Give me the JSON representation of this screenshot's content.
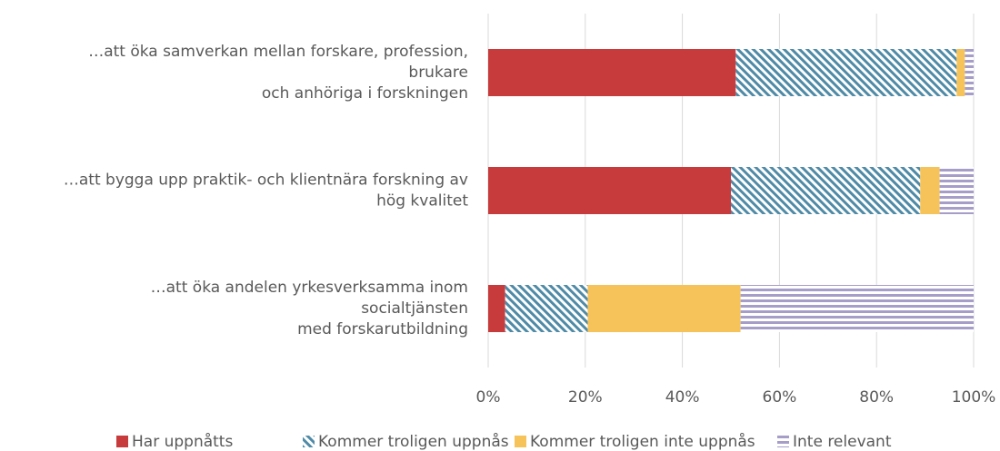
{
  "chart_data": {
    "type": "stacked-barh",
    "categories": [
      [
        "…att öka samverkan mellan forskare, profession,",
        "brukare",
        "och anhöriga i forskningen"
      ],
      [
        "…att bygga upp praktik- och klientnära forskning av",
        "hög kvalitet"
      ],
      [
        "…att öka andelen yrkesverksamma inom",
        "socialtjänsten",
        "med forskarutbildning"
      ]
    ],
    "series": [
      {
        "name": "Har uppnåtts",
        "color": "#c83b3d",
        "hatch": "none",
        "values": [
          51,
          50,
          3.5
        ]
      },
      {
        "name": "Kommer troligen uppnås",
        "color": "#4f8aa6",
        "hatch": "diagonal",
        "values": [
          45.5,
          39,
          17
        ]
      },
      {
        "name": "Kommer troligen inte uppnås",
        "color": "#f6c35a",
        "hatch": "none",
        "values": [
          1.7,
          4,
          31.5
        ]
      },
      {
        "name": "Inte relevant",
        "color": "#a69dc8",
        "hatch": "horizontal",
        "values": [
          1.8,
          7,
          48
        ]
      }
    ],
    "xlim": [
      0,
      100
    ],
    "xticks": [
      {
        "value": 0,
        "label": "0%"
      },
      {
        "value": 20,
        "label": "20%"
      },
      {
        "value": 40,
        "label": "40%"
      },
      {
        "value": 60,
        "label": "60%"
      },
      {
        "value": 80,
        "label": "80%"
      },
      {
        "value": 100,
        "label": "100%"
      }
    ],
    "grid": true,
    "legend": "bottom"
  }
}
